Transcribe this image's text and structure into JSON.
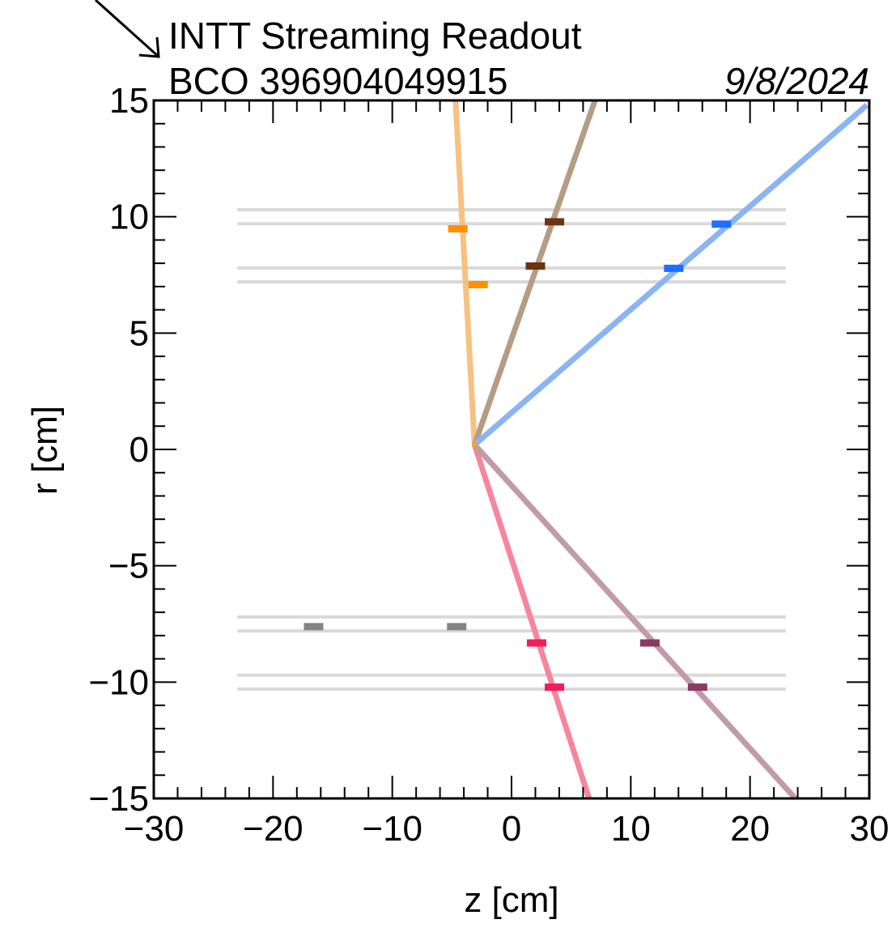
{
  "chart_data": {
    "type": "scatter",
    "title_line1": "INTT Streaming Readout",
    "title_line2": "BCO 396904049915",
    "date": "9/8/2024",
    "xlabel": "z [cm]",
    "ylabel": "r [cm]",
    "xlim": [
      -30,
      30
    ],
    "ylim": [
      -15,
      15
    ],
    "xticks": [
      {
        "value": -30,
        "label": "−30"
      },
      {
        "value": -20,
        "label": "−20"
      },
      {
        "value": -10,
        "label": "−10"
      },
      {
        "value": 0,
        "label": "0"
      },
      {
        "value": 10,
        "label": "10"
      },
      {
        "value": 20,
        "label": "20"
      },
      {
        "value": 30,
        "label": "30"
      }
    ],
    "yticks": [
      {
        "value": -15,
        "label": "−15"
      },
      {
        "value": -10,
        "label": "−10"
      },
      {
        "value": -5,
        "label": "−5"
      },
      {
        "value": 0,
        "label": "0"
      },
      {
        "value": 5,
        "label": "5"
      },
      {
        "value": 10,
        "label": "10"
      },
      {
        "value": 15,
        "label": "15"
      }
    ],
    "grid": false,
    "detector_layers": {
      "z_range": [
        -23,
        23
      ],
      "r_values": [
        10.3,
        9.7,
        7.8,
        7.2,
        -7.2,
        -7.8,
        -9.7,
        -10.3
      ],
      "color": "#d9d9d9"
    },
    "vertex": {
      "z": -3.1,
      "r": 0.2
    },
    "tracks": [
      {
        "color": "#f7c182",
        "points": [
          {
            "z": -3.1,
            "r": 0.2
          },
          {
            "z": -4.7,
            "r": 15
          }
        ]
      },
      {
        "color": "#b59c85",
        "points": [
          {
            "z": -3.1,
            "r": 0.2
          },
          {
            "z": 7.0,
            "r": 15
          }
        ]
      },
      {
        "color": "#8ab4f2",
        "points": [
          {
            "z": -3.1,
            "r": 0.2
          },
          {
            "z": 29.8,
            "r": 14.8
          }
        ]
      },
      {
        "color": "#f7859e",
        "points": [
          {
            "z": -3.1,
            "r": 0.2
          },
          {
            "z": 6.5,
            "r": -15
          }
        ]
      },
      {
        "color": "#c29aa8",
        "points": [
          {
            "z": -3.1,
            "r": 0.2
          },
          {
            "z": 23.8,
            "r": -15
          }
        ]
      }
    ],
    "hits": [
      {
        "z": -4.5,
        "r": 9.5,
        "color": "#ff9100"
      },
      {
        "z": -2.8,
        "r": 7.1,
        "color": "#ff9100"
      },
      {
        "z": 3.6,
        "r": 9.8,
        "color": "#6b3310"
      },
      {
        "z": 2.0,
        "r": 7.9,
        "color": "#6b3310"
      },
      {
        "z": 17.6,
        "r": 9.7,
        "color": "#1f6fff"
      },
      {
        "z": 13.6,
        "r": 7.8,
        "color": "#1f6fff"
      },
      {
        "z": 2.1,
        "r": -8.3,
        "color": "#f01e5a"
      },
      {
        "z": 3.6,
        "r": -10.2,
        "color": "#f01e5a"
      },
      {
        "z": 11.6,
        "r": -8.3,
        "color": "#8a3a62"
      },
      {
        "z": 15.6,
        "r": -10.2,
        "color": "#8a3a62"
      },
      {
        "z": -16.6,
        "r": -7.6,
        "color": "#848484"
      },
      {
        "z": -4.6,
        "r": -7.6,
        "color": "#848484"
      }
    ]
  }
}
